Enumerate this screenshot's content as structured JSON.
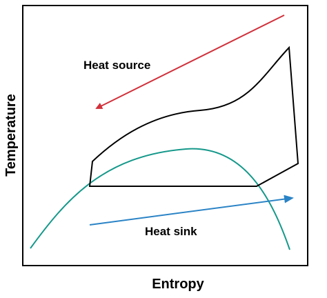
{
  "labels": {
    "heat_source": "Heat source",
    "heat_sink": "Heat sink",
    "x_axis": "Entropy",
    "y_axis": "Temperature"
  },
  "colors": {
    "frame": "#000000",
    "cycle": "#000000",
    "heat_source_arrow": "#d1303a",
    "heat_sink_arrow": "#2a83c6",
    "saturation_dome": "#14988a"
  }
}
